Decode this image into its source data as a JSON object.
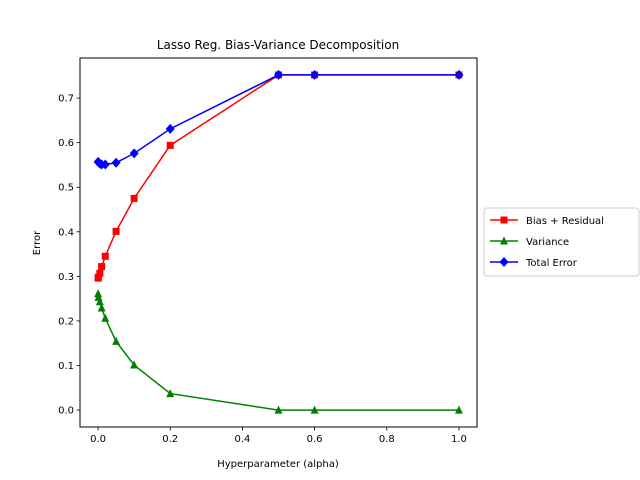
{
  "chart_data": {
    "type": "line",
    "title": "Lasso Reg. Bias-Variance Decomposition",
    "xlabel": "Hyperparameter (alpha)",
    "ylabel": "Error",
    "xlim": [
      -0.05,
      1.05
    ],
    "ylim": [
      -0.038,
      0.79
    ],
    "xticks": [
      0.0,
      0.2,
      0.4,
      0.6,
      0.8,
      1.0
    ],
    "xtick_labels": [
      "0.0",
      "0.2",
      "0.4",
      "0.6",
      "0.8",
      "1.0"
    ],
    "yticks": [
      0.0,
      0.1,
      0.2,
      0.3,
      0.4,
      0.5,
      0.6,
      0.7
    ],
    "ytick_labels": [
      "0.0",
      "0.1",
      "0.2",
      "0.3",
      "0.4",
      "0.5",
      "0.6",
      "0.7"
    ],
    "grid": false,
    "legend_position": "right-outside",
    "x": [
      0.0001,
      0.001,
      0.005,
      0.01,
      0.02,
      0.05,
      0.1,
      0.2,
      0.5,
      0.6,
      1.0
    ],
    "series": [
      {
        "name": "Bias + Residual",
        "color": "#ff0000",
        "marker": "square",
        "values": [
          0.296,
          0.298,
          0.307,
          0.322,
          0.345,
          0.401,
          0.475,
          0.594,
          0.752,
          0.752,
          0.752
        ]
      },
      {
        "name": "Variance",
        "color": "#008000",
        "marker": "triangle",
        "values": [
          0.261,
          0.253,
          0.243,
          0.229,
          0.206,
          0.154,
          0.101,
          0.037,
          0.0,
          0.0,
          0.0
        ]
      },
      {
        "name": "Total Error",
        "color": "#0000ff",
        "marker": "diamond",
        "values": [
          0.557,
          0.556,
          0.553,
          0.551,
          0.551,
          0.555,
          0.576,
          0.631,
          0.752,
          0.752,
          0.752
        ]
      }
    ]
  }
}
